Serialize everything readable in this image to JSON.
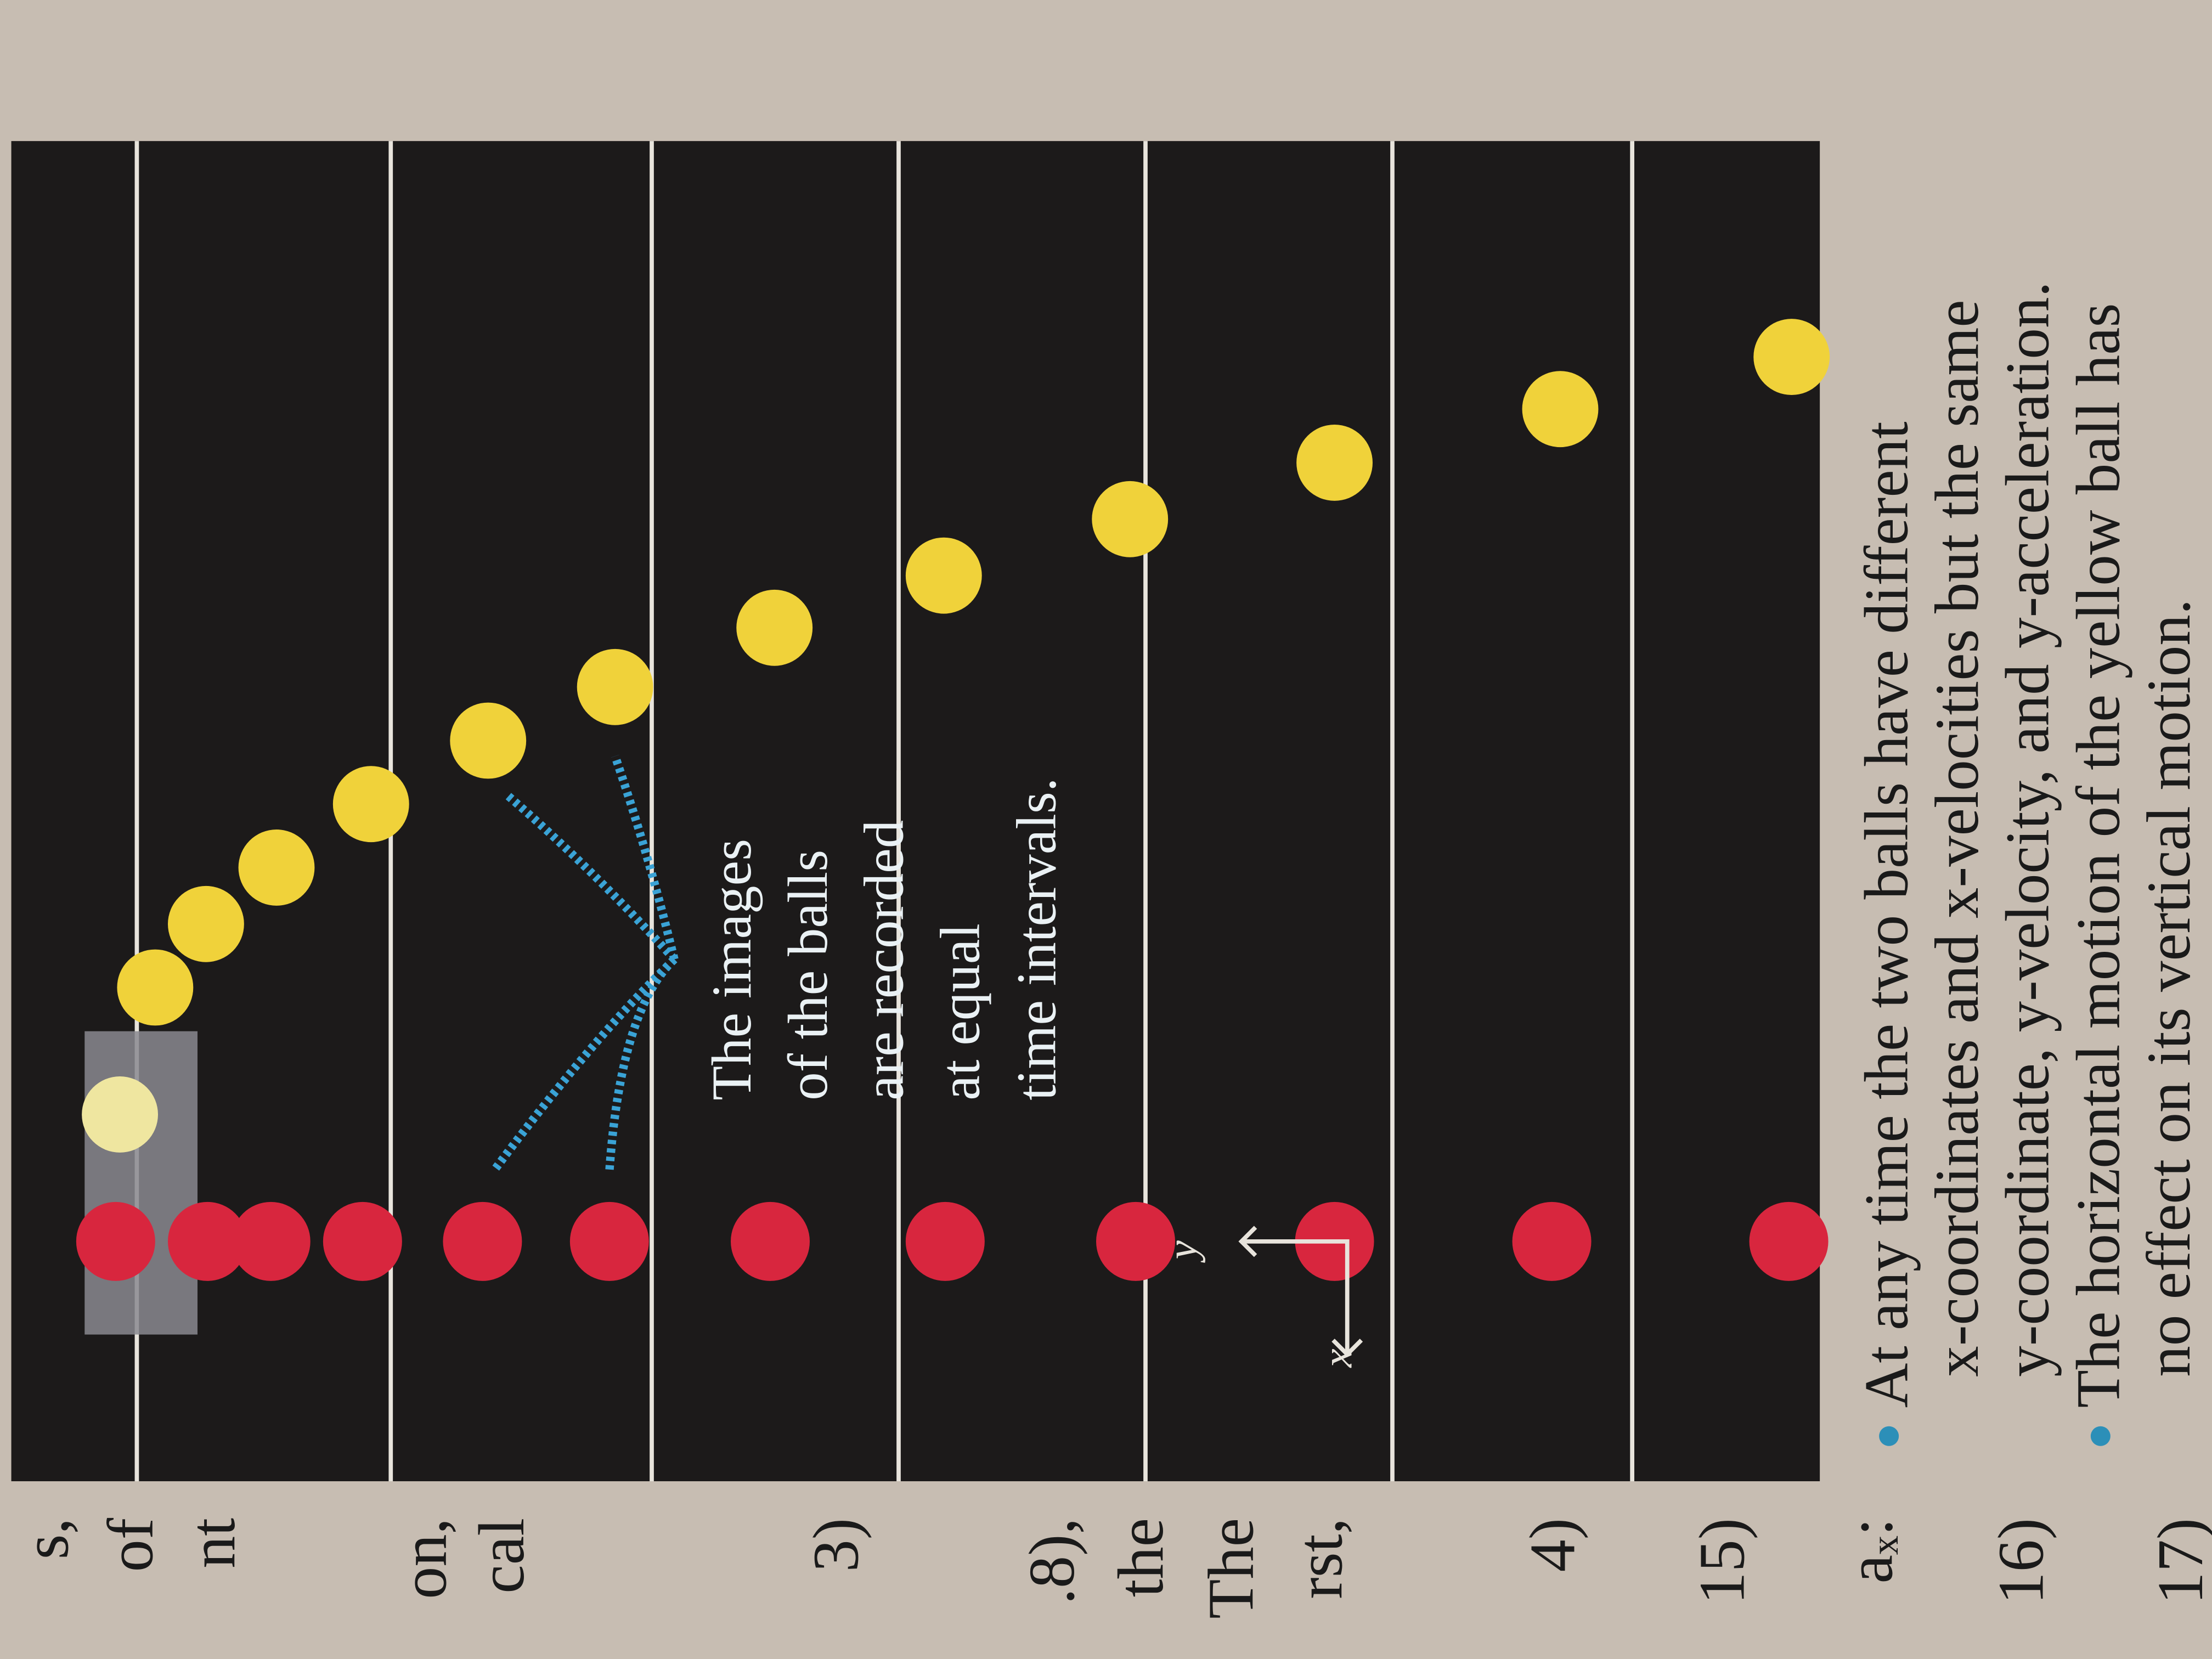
{
  "margin_fragments": [
    "s,",
    "of",
    "nt",
    "on,",
    "cal",
    "3)",
    ".8),",
    "the",
    "The",
    "rst,",
    "4)",
    "15)",
    "aₓ:",
    "16)",
    "17)"
  ],
  "figure": {
    "caption": [
      "The images",
      "of the balls",
      "are recorded",
      "at equal",
      "time intervals."
    ],
    "axis_y": "y",
    "axis_x": "x"
  },
  "bullets": [
    [
      "At any time the two balls have different",
      "x-coordinates and x-velocities but the same",
      "y-coordinate, y-velocity, and y-acceleration."
    ],
    [
      "The horizontal motion of the yellow ball has",
      "no effect on its vertical motion."
    ]
  ]
}
